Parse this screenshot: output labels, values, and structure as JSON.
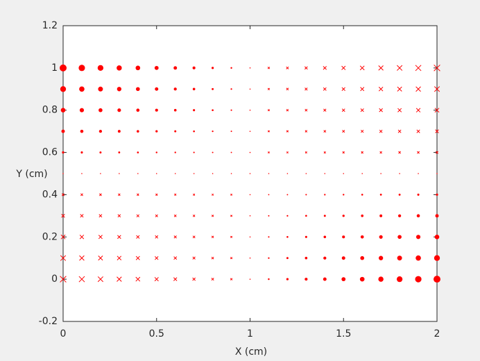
{
  "chart_data": {
    "type": "scatter",
    "color": "#ff0000",
    "xlabel": "X (cm)",
    "ylabel": "Y (cm)",
    "xlim": [
      0,
      2
    ],
    "ylim": [
      -0.2,
      1.2
    ],
    "xticks": [
      0,
      0.5,
      1,
      1.5,
      2
    ],
    "yticks": [
      -0.2,
      0,
      0.2,
      0.4,
      0.6,
      0.8,
      1,
      1.2
    ],
    "x": [
      0,
      0.1,
      0.2,
      0.3,
      0.4,
      0.5,
      0.6,
      0.7,
      0.8,
      0.9,
      1,
      1.1,
      1.2,
      1.3,
      1.4,
      1.5,
      1.6,
      1.7,
      1.8,
      1.9,
      2
    ],
    "y": [
      0,
      0.1,
      0.2,
      0.3,
      0.4,
      0.5,
      0.6,
      0.7,
      0.8,
      0.9,
      1
    ],
    "values": [
      [
        -1,
        -0.9,
        -0.8,
        -0.7,
        -0.6,
        -0.5,
        -0.4,
        -0.3,
        -0.2,
        -0.1,
        0,
        0.1,
        0.2,
        0.3,
        0.4,
        0.5,
        0.6,
        0.7,
        0.8,
        0.9,
        1
      ],
      [
        -0.8,
        -0.72,
        -0.64,
        -0.56,
        -0.48,
        -0.4,
        -0.32,
        -0.24,
        -0.16,
        -0.08,
        0,
        0.08,
        0.16,
        0.24,
        0.32,
        0.4,
        0.48,
        0.56,
        0.64,
        0.72,
        0.8
      ],
      [
        -0.6,
        -0.54,
        -0.48,
        -0.42,
        -0.36,
        -0.3,
        -0.24,
        -0.18,
        -0.12,
        -0.06,
        0,
        0.06,
        0.12,
        0.18,
        0.24,
        0.3,
        0.36,
        0.42,
        0.48,
        0.54,
        0.6
      ],
      [
        -0.4,
        -0.36,
        -0.32,
        -0.28,
        -0.24,
        -0.2,
        -0.16,
        -0.12,
        -0.08,
        -0.04,
        0,
        0.04,
        0.08,
        0.12,
        0.16,
        0.2,
        0.24,
        0.28,
        0.32,
        0.36,
        0.4
      ],
      [
        -0.2,
        -0.18,
        -0.16,
        -0.14,
        -0.12,
        -0.1,
        -0.08,
        -0.06,
        -0.04,
        -0.02,
        0,
        0.02,
        0.04,
        0.06,
        0.08,
        0.1,
        0.12,
        0.14,
        0.16,
        0.18,
        0.2
      ],
      [
        0,
        0,
        0,
        0,
        0,
        0,
        0,
        0,
        0,
        0,
        0,
        0,
        0,
        0,
        0,
        0,
        0,
        0,
        0,
        0,
        0
      ],
      [
        0.2,
        0.18,
        0.16,
        0.14,
        0.12,
        0.1,
        0.08,
        0.06,
        0.04,
        0.02,
        0,
        -0.02,
        -0.04,
        -0.06,
        -0.08,
        -0.1,
        -0.12,
        -0.14,
        -0.16,
        -0.18,
        -0.2
      ],
      [
        0.4,
        0.36,
        0.32,
        0.28,
        0.24,
        0.2,
        0.16,
        0.12,
        0.08,
        0.04,
        0,
        -0.04,
        -0.08,
        -0.12,
        -0.16,
        -0.2,
        -0.24,
        -0.28,
        -0.32,
        -0.36,
        -0.4
      ],
      [
        0.6,
        0.54,
        0.48,
        0.42,
        0.36,
        0.3,
        0.24,
        0.18,
        0.12,
        0.06,
        0,
        -0.06,
        -0.12,
        -0.18,
        -0.24,
        -0.3,
        -0.36,
        -0.42,
        -0.48,
        -0.54,
        -0.6
      ],
      [
        0.8,
        0.72,
        0.64,
        0.56,
        0.48,
        0.4,
        0.32,
        0.24,
        0.16,
        0.08,
        0,
        -0.08,
        -0.16,
        -0.24,
        -0.32,
        -0.4,
        -0.48,
        -0.56,
        -0.64,
        -0.72,
        -0.8
      ],
      [
        1,
        0.9,
        0.8,
        0.7,
        0.6,
        0.5,
        0.4,
        0.3,
        0.2,
        0.1,
        0,
        -0.1,
        -0.2,
        -0.3,
        -0.4,
        -0.5,
        -0.6,
        -0.7,
        -0.8,
        -0.9,
        -1
      ]
    ]
  }
}
